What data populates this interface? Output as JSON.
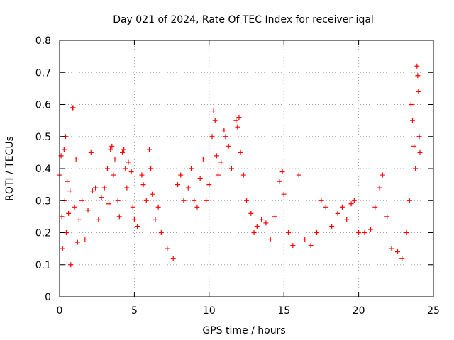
{
  "chart_data": {
    "type": "scatter",
    "title": "Day 021 of 2024, Rate Of TEC Index for receiver iqal",
    "xlabel": "GPS time / hours",
    "ylabel": "ROTI / TECUs",
    "xlim": [
      0,
      25
    ],
    "ylim": [
      0,
      0.8
    ],
    "xticks": [
      0,
      5,
      10,
      15,
      20,
      25
    ],
    "xtick_labels": [
      "0",
      "5",
      "10",
      "15",
      "20",
      "25"
    ],
    "yticks": [
      0,
      0.1,
      0.2,
      0.3,
      0.4,
      0.5,
      0.6,
      0.7,
      0.8
    ],
    "ytick_labels": [
      "0",
      "0.1",
      "0.2",
      "0.3",
      "0.4",
      "0.5",
      "0.6",
      "0.7",
      "0.8"
    ],
    "grid": true,
    "marker": "+",
    "color": "#ff0000",
    "series": [
      {
        "name": "ROTI",
        "points": [
          [
            0.0,
            0.38
          ],
          [
            0.1,
            0.44
          ],
          [
            0.15,
            0.25
          ],
          [
            0.2,
            0.15
          ],
          [
            0.3,
            0.46
          ],
          [
            0.35,
            0.3
          ],
          [
            0.4,
            0.5
          ],
          [
            0.45,
            0.2
          ],
          [
            0.5,
            0.36
          ],
          [
            0.6,
            0.26
          ],
          [
            0.7,
            0.33
          ],
          [
            0.75,
            0.1
          ],
          [
            0.85,
            0.59
          ],
          [
            0.9,
            0.59
          ],
          [
            1.0,
            0.28
          ],
          [
            1.1,
            0.43
          ],
          [
            1.2,
            0.17
          ],
          [
            1.3,
            0.24
          ],
          [
            1.5,
            0.3
          ],
          [
            1.7,
            0.18
          ],
          [
            1.9,
            0.27
          ],
          [
            2.1,
            0.45
          ],
          [
            2.2,
            0.33
          ],
          [
            2.4,
            0.34
          ],
          [
            2.6,
            0.24
          ],
          [
            2.8,
            0.31
          ],
          [
            3.0,
            0.34
          ],
          [
            3.2,
            0.4
          ],
          [
            3.3,
            0.29
          ],
          [
            3.4,
            0.46
          ],
          [
            3.5,
            0.47
          ],
          [
            3.6,
            0.38
          ],
          [
            3.7,
            0.43
          ],
          [
            3.9,
            0.3
          ],
          [
            4.0,
            0.25
          ],
          [
            4.2,
            0.45
          ],
          [
            4.3,
            0.46
          ],
          [
            4.4,
            0.4
          ],
          [
            4.5,
            0.34
          ],
          [
            4.6,
            0.42
          ],
          [
            4.8,
            0.39
          ],
          [
            4.9,
            0.28
          ],
          [
            5.0,
            0.24
          ],
          [
            5.2,
            0.22
          ],
          [
            5.5,
            0.38
          ],
          [
            5.6,
            0.35
          ],
          [
            5.8,
            0.3
          ],
          [
            6.0,
            0.46
          ],
          [
            6.1,
            0.4
          ],
          [
            6.2,
            0.32
          ],
          [
            6.4,
            0.24
          ],
          [
            6.6,
            0.28
          ],
          [
            6.8,
            0.2
          ],
          [
            7.2,
            0.15
          ],
          [
            7.6,
            0.12
          ],
          [
            7.9,
            0.35
          ],
          [
            8.1,
            0.38
          ],
          [
            8.3,
            0.3
          ],
          [
            8.6,
            0.34
          ],
          [
            8.8,
            0.4
          ],
          [
            9.0,
            0.3
          ],
          [
            9.2,
            0.28
          ],
          [
            9.4,
            0.37
          ],
          [
            9.6,
            0.43
          ],
          [
            9.8,
            0.3
          ],
          [
            10.0,
            0.35
          ],
          [
            10.2,
            0.5
          ],
          [
            10.3,
            0.58
          ],
          [
            10.4,
            0.55
          ],
          [
            10.5,
            0.44
          ],
          [
            10.6,
            0.38
          ],
          [
            10.8,
            0.42
          ],
          [
            11.0,
            0.52
          ],
          [
            11.1,
            0.5
          ],
          [
            11.3,
            0.47
          ],
          [
            11.5,
            0.4
          ],
          [
            11.8,
            0.55
          ],
          [
            11.9,
            0.53
          ],
          [
            12.0,
            0.56
          ],
          [
            12.1,
            0.45
          ],
          [
            12.3,
            0.38
          ],
          [
            12.5,
            0.3
          ],
          [
            12.8,
            0.26
          ],
          [
            13.0,
            0.2
          ],
          [
            13.2,
            0.22
          ],
          [
            13.5,
            0.24
          ],
          [
            13.8,
            0.23
          ],
          [
            14.1,
            0.18
          ],
          [
            14.4,
            0.25
          ],
          [
            14.7,
            0.36
          ],
          [
            14.9,
            0.39
          ],
          [
            15.0,
            0.32
          ],
          [
            15.3,
            0.2
          ],
          [
            15.6,
            0.16
          ],
          [
            16.0,
            0.38
          ],
          [
            16.4,
            0.18
          ],
          [
            16.8,
            0.16
          ],
          [
            17.2,
            0.2
          ],
          [
            17.5,
            0.3
          ],
          [
            17.8,
            0.28
          ],
          [
            18.2,
            0.22
          ],
          [
            18.6,
            0.26
          ],
          [
            18.9,
            0.28
          ],
          [
            19.2,
            0.24
          ],
          [
            19.5,
            0.29
          ],
          [
            19.7,
            0.3
          ],
          [
            20.0,
            0.2
          ],
          [
            20.4,
            0.2
          ],
          [
            20.8,
            0.21
          ],
          [
            21.1,
            0.28
          ],
          [
            21.4,
            0.34
          ],
          [
            21.6,
            0.38
          ],
          [
            21.9,
            0.25
          ],
          [
            22.2,
            0.15
          ],
          [
            22.6,
            0.14
          ],
          [
            22.9,
            0.12
          ],
          [
            23.2,
            0.2
          ],
          [
            23.4,
            0.3
          ],
          [
            23.5,
            0.6
          ],
          [
            23.6,
            0.55
          ],
          [
            23.7,
            0.47
          ],
          [
            23.8,
            0.4
          ],
          [
            23.9,
            0.72
          ],
          [
            23.95,
            0.69
          ],
          [
            24.0,
            0.64
          ],
          [
            24.05,
            0.5
          ],
          [
            24.1,
            0.45
          ]
        ]
      }
    ]
  }
}
